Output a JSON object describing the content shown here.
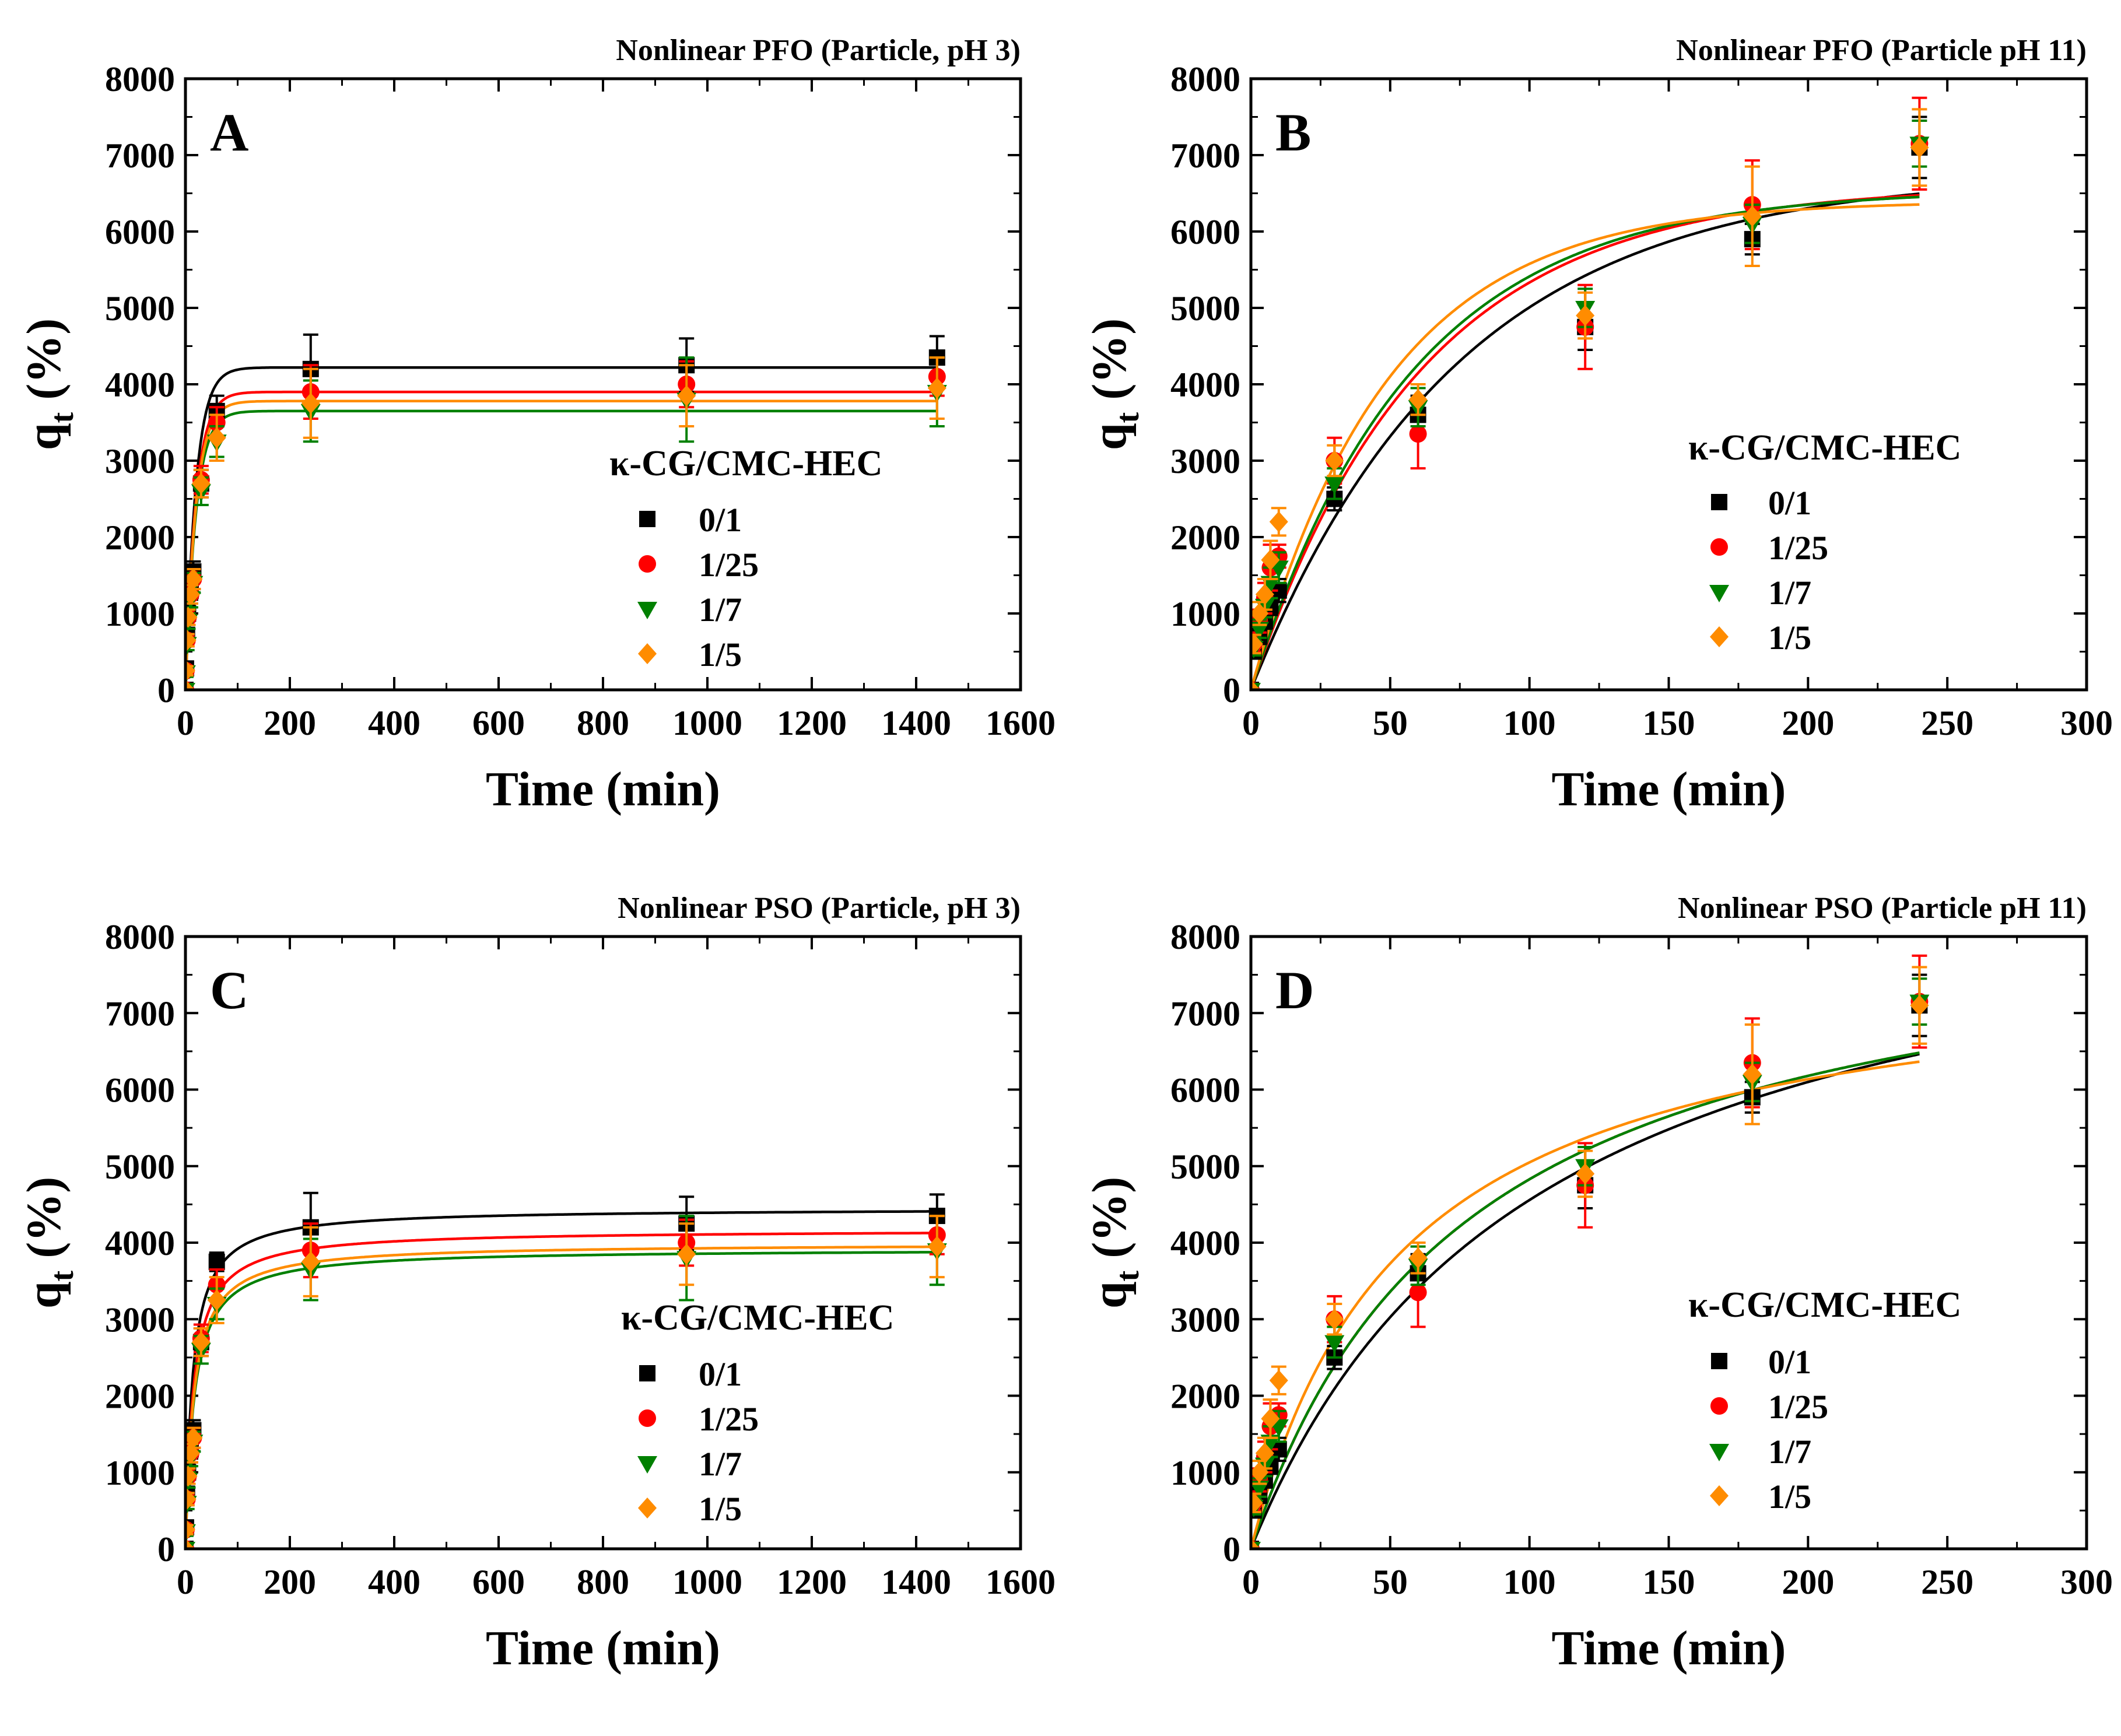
{
  "colors": {
    "s0": "#000000",
    "s1": "#ff0000",
    "s2": "#008000",
    "s3": "#ff8c00"
  },
  "legend_title": "κ-CG/CMC-HEC",
  "chart_data": [
    {
      "type": "scatter",
      "panel_letter": "A",
      "title": "Nonlinear PFO (Particle, pH 3)",
      "xlabel": "Time (min)",
      "ylabel": "q",
      "ylabel_sub": "t",
      "ylabel_unit": " (%)",
      "xlim": [
        0,
        1600
      ],
      "ylim": [
        0,
        8000
      ],
      "xticks": [
        0,
        200,
        400,
        600,
        800,
        1000,
        1200,
        1400,
        1600
      ],
      "yticks": [
        0,
        1000,
        2000,
        3000,
        4000,
        5000,
        6000,
        7000,
        8000
      ],
      "model": "pfo",
      "series": [
        {
          "name": "0/1",
          "marker": "square",
          "color_key": "s0",
          "x": [
            0,
            1,
            3,
            5,
            10,
            15,
            30,
            60,
            240,
            960,
            1440
          ],
          "y": [
            0,
            280,
            720,
            1000,
            1300,
            1550,
            2700,
            3650,
            4200,
            4250,
            4350
          ],
          "err": [
            0,
            60,
            80,
            100,
            120,
            130,
            180,
            200,
            450,
            350,
            280
          ],
          "fit": {
            "qe": 4220,
            "k": 0.05
          }
        },
        {
          "name": "1/25",
          "marker": "circle",
          "color_key": "s1",
          "x": [
            0,
            1,
            3,
            5,
            10,
            15,
            30,
            60,
            240,
            960,
            1440
          ],
          "y": [
            0,
            250,
            650,
            950,
            1250,
            1450,
            2750,
            3500,
            3900,
            4000,
            4100
          ],
          "err": [
            0,
            60,
            80,
            100,
            120,
            130,
            180,
            200,
            350,
            300,
            250
          ],
          "fit": {
            "qe": 3900,
            "k": 0.05
          }
        },
        {
          "name": "1/7",
          "marker": "triangle-down",
          "color_key": "s2",
          "x": [
            0,
            1,
            3,
            5,
            10,
            15,
            30,
            60,
            240,
            960,
            1440
          ],
          "y": [
            0,
            230,
            600,
            900,
            1200,
            1400,
            2600,
            3250,
            3650,
            3800,
            3900
          ],
          "err": [
            0,
            60,
            80,
            100,
            120,
            130,
            180,
            200,
            400,
            550,
            450
          ],
          "fit": {
            "qe": 3650,
            "k": 0.05
          }
        },
        {
          "name": "1/5",
          "marker": "diamond",
          "color_key": "s3",
          "x": [
            0,
            1,
            3,
            5,
            10,
            15,
            30,
            60,
            240,
            960,
            1440
          ],
          "y": [
            0,
            250,
            650,
            950,
            1250,
            1450,
            2700,
            3300,
            3750,
            3850,
            3950
          ],
          "err": [
            0,
            60,
            80,
            100,
            120,
            130,
            180,
            300,
            450,
            400,
            400
          ],
          "fit": {
            "qe": 3780,
            "k": 0.05
          }
        }
      ]
    },
    {
      "type": "scatter",
      "panel_letter": "B",
      "title": "Nonlinear PFO (Particle pH 11)",
      "xlabel": "Time (min)",
      "ylabel": "q",
      "ylabel_sub": "t",
      "ylabel_unit": " (%)",
      "xlim": [
        0,
        300
      ],
      "ylim": [
        0,
        8000
      ],
      "xticks": [
        0,
        50,
        100,
        150,
        200,
        250,
        300
      ],
      "yticks": [
        0,
        1000,
        2000,
        3000,
        4000,
        5000,
        6000,
        7000,
        8000
      ],
      "model": "pfo",
      "series": [
        {
          "name": "0/1",
          "marker": "square",
          "color_key": "s0",
          "x": [
            0,
            1,
            3,
            5,
            7,
            10,
            30,
            60,
            120,
            180,
            240
          ],
          "y": [
            0,
            500,
            700,
            900,
            1100,
            1300,
            2500,
            3600,
            4750,
            5900,
            7100
          ],
          "err": [
            0,
            80,
            100,
            100,
            120,
            150,
            150,
            250,
            300,
            200,
            400
          ],
          "fit": {
            "qe": 6760,
            "k": 0.0135
          }
        },
        {
          "name": "1/25",
          "marker": "circle",
          "color_key": "s1",
          "x": [
            0,
            1,
            3,
            5,
            7,
            10,
            30,
            60,
            120,
            180,
            240
          ],
          "y": [
            0,
            600,
            900,
            1200,
            1600,
            1750,
            3000,
            3350,
            4750,
            6350,
            7150
          ],
          "err": [
            0,
            100,
            150,
            200,
            300,
            150,
            300,
            450,
            550,
            580,
            600
          ],
          "fit": {
            "qe": 6600,
            "k": 0.0165
          }
        },
        {
          "name": "1/7",
          "marker": "triangle-down",
          "color_key": "s2",
          "x": [
            0,
            1,
            3,
            5,
            7,
            10,
            30,
            60,
            120,
            180,
            240
          ],
          "y": [
            0,
            550,
            800,
            1100,
            1400,
            1600,
            2700,
            3700,
            5000,
            6100,
            7150
          ],
          "err": [
            0,
            100,
            120,
            150,
            200,
            200,
            200,
            250,
            250,
            250,
            300
          ],
          "fit": {
            "qe": 6550,
            "k": 0.0175
          }
        },
        {
          "name": "1/5",
          "marker": "diamond",
          "color_key": "s3",
          "x": [
            0,
            1,
            3,
            5,
            7,
            10,
            30,
            60,
            120,
            180,
            240
          ],
          "y": [
            0,
            600,
            1000,
            1250,
            1700,
            2200,
            3000,
            3800,
            4900,
            6200,
            7100
          ],
          "err": [
            0,
            120,
            150,
            200,
            250,
            180,
            200,
            200,
            300,
            650,
            500
          ],
          "fit": {
            "qe": 6400,
            "k": 0.0205
          }
        }
      ]
    },
    {
      "type": "scatter",
      "panel_letter": "C",
      "title": "Nonlinear PSO (Particle, pH 3)",
      "xlabel": "Time (min)",
      "ylabel": "q",
      "ylabel_sub": "t",
      "ylabel_unit": " (%)",
      "xlim": [
        0,
        1600
      ],
      "ylim": [
        0,
        8000
      ],
      "xticks": [
        0,
        200,
        400,
        600,
        800,
        1000,
        1200,
        1400,
        1600
      ],
      "yticks": [
        0,
        1000,
        2000,
        3000,
        4000,
        5000,
        6000,
        7000,
        8000
      ],
      "model": "pso",
      "series": [
        {
          "name": "0/1",
          "marker": "square",
          "color_key": "s0",
          "x": [
            0,
            1,
            3,
            5,
            10,
            15,
            30,
            60,
            240,
            960,
            1440
          ],
          "y": [
            0,
            280,
            720,
            1000,
            1300,
            1550,
            2700,
            3750,
            4200,
            4250,
            4350
          ],
          "err": [
            0,
            60,
            80,
            100,
            120,
            130,
            180,
            120,
            450,
            350,
            280
          ],
          "fit": {
            "qe": 4450,
            "k": 1.66e-05
          }
        },
        {
          "name": "1/25",
          "marker": "circle",
          "color_key": "s1",
          "x": [
            0,
            1,
            3,
            5,
            10,
            15,
            30,
            60,
            240,
            960,
            1440
          ],
          "y": [
            0,
            250,
            650,
            950,
            1250,
            1450,
            2750,
            3450,
            3900,
            4000,
            4100
          ],
          "err": [
            0,
            60,
            80,
            100,
            120,
            130,
            180,
            200,
            350,
            300,
            250
          ],
          "fit": {
            "qe": 4170,
            "k": 1.57e-05
          }
        },
        {
          "name": "1/7",
          "marker": "triangle-down",
          "color_key": "s2",
          "x": [
            0,
            1,
            3,
            5,
            10,
            15,
            30,
            60,
            240,
            960,
            1440
          ],
          "y": [
            0,
            230,
            600,
            900,
            1200,
            1400,
            2600,
            3200,
            3650,
            3800,
            3900
          ],
          "err": [
            0,
            60,
            80,
            100,
            120,
            130,
            180,
            200,
            400,
            550,
            450
          ],
          "fit": {
            "qe": 3920,
            "k": 1.55e-05
          }
        },
        {
          "name": "1/5",
          "marker": "diamond",
          "color_key": "s3",
          "x": [
            0,
            1,
            3,
            5,
            10,
            15,
            30,
            60,
            240,
            960,
            1440
          ],
          "y": [
            0,
            250,
            650,
            950,
            1250,
            1450,
            2700,
            3250,
            3750,
            3850,
            3950
          ],
          "err": [
            0,
            60,
            80,
            100,
            120,
            130,
            180,
            300,
            450,
            400,
            400
          ],
          "fit": {
            "qe": 3990,
            "k": 1.57e-05
          }
        }
      ]
    },
    {
      "type": "scatter",
      "panel_letter": "D",
      "title": "Nonlinear PSO (Particle pH 11)",
      "xlabel": "Time (min)",
      "ylabel": "q",
      "ylabel_sub": "t",
      "ylabel_unit": " (%)",
      "xlim": [
        0,
        300
      ],
      "ylim": [
        0,
        8000
      ],
      "xticks": [
        0,
        50,
        100,
        150,
        200,
        250,
        300
      ],
      "yticks": [
        0,
        1000,
        2000,
        3000,
        4000,
        5000,
        6000,
        7000,
        8000
      ],
      "model": "pso",
      "series": [
        {
          "name": "0/1",
          "marker": "square",
          "color_key": "s0",
          "x": [
            0,
            1,
            3,
            5,
            7,
            10,
            30,
            60,
            120,
            180,
            240
          ],
          "y": [
            0,
            500,
            700,
            900,
            1100,
            1300,
            2500,
            3600,
            4750,
            5900,
            7100
          ],
          "err": [
            0,
            80,
            100,
            100,
            120,
            150,
            150,
            250,
            300,
            200,
            400
          ],
          "fit": {
            "qe": 9220,
            "k": 1.06e-06
          }
        },
        {
          "name": "1/25",
          "marker": "circle",
          "color_key": "s1",
          "x": [
            0,
            1,
            3,
            5,
            7,
            10,
            30,
            60,
            120,
            180,
            240
          ],
          "y": [
            0,
            600,
            900,
            1200,
            1600,
            1750,
            3000,
            3350,
            4750,
            6350,
            7150
          ],
          "err": [
            0,
            100,
            150,
            200,
            300,
            150,
            300,
            450,
            550,
            580,
            600
          ],
          "fit": {
            "qe": 8580,
            "k": 1.5e-06
          }
        },
        {
          "name": "1/7",
          "marker": "triangle-down",
          "color_key": "s2",
          "x": [
            0,
            1,
            3,
            5,
            7,
            10,
            30,
            60,
            120,
            180,
            240
          ],
          "y": [
            0,
            550,
            800,
            1100,
            1400,
            1600,
            2700,
            3700,
            5000,
            6100,
            7150
          ],
          "err": [
            0,
            100,
            120,
            150,
            200,
            200,
            200,
            250,
            250,
            250,
            300
          ],
          "fit": {
            "qe": 8580,
            "k": 1.5e-06
          }
        },
        {
          "name": "1/5",
          "marker": "diamond",
          "color_key": "s3",
          "x": [
            0,
            1,
            3,
            5,
            7,
            10,
            30,
            60,
            120,
            180,
            240
          ],
          "y": [
            0,
            600,
            1000,
            1250,
            1700,
            2200,
            3000,
            3800,
            4900,
            6200,
            7100
          ],
          "err": [
            0,
            120,
            150,
            200,
            250,
            180,
            200,
            200,
            300,
            650,
            500
          ],
          "fit": {
            "qe": 7820,
            "k": 2.33e-06
          }
        }
      ]
    }
  ]
}
